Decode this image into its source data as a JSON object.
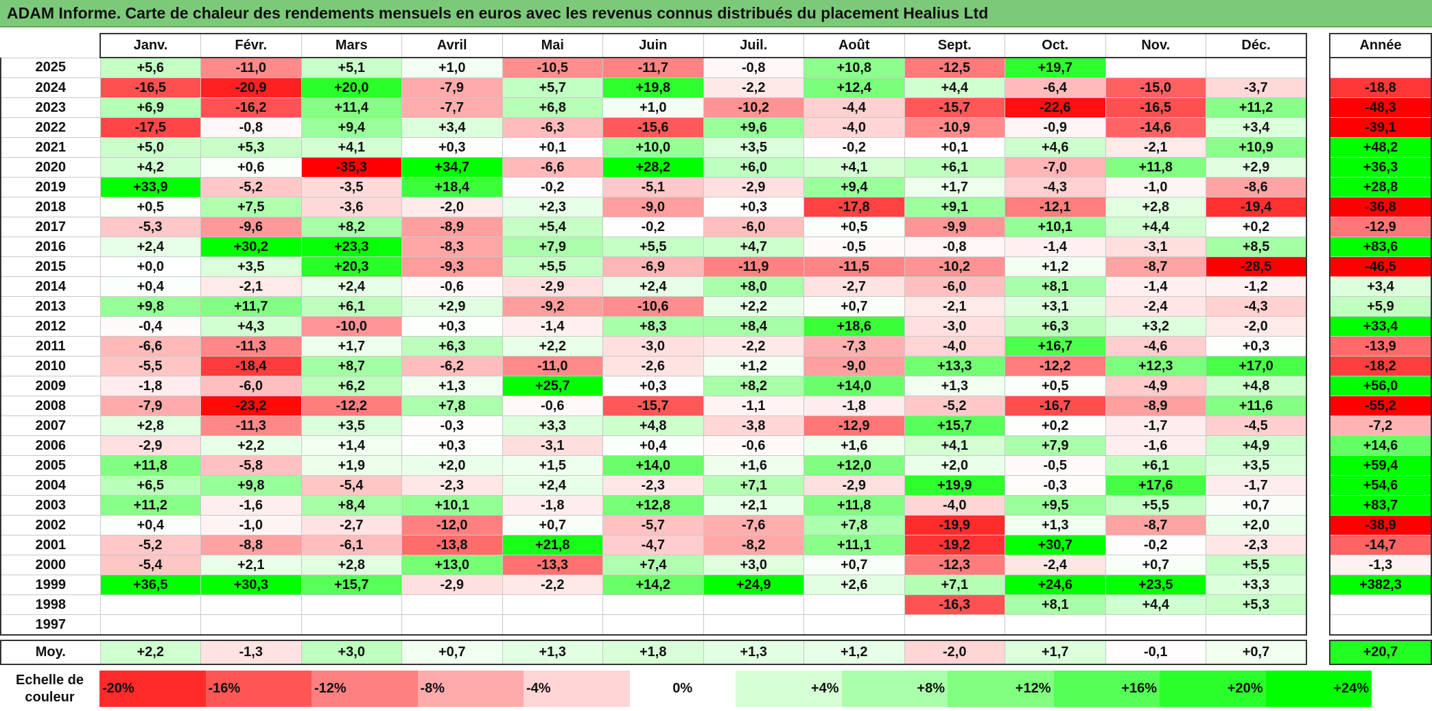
{
  "title": "ADAM Informe. Carte de chaleur des rendements mensuels en euros avec les revenus connus distribués du placement Healius Ltd",
  "chart_data": {
    "type": "heatmap",
    "title": "ADAM Informe. Carte de chaleur des rendements mensuels en euros avec les revenus connus distribués du placement Healius Ltd",
    "months": [
      "Janv.",
      "Févr.",
      "Mars",
      "Avril",
      "Mai",
      "Juin",
      "Juil.",
      "Août",
      "Sept.",
      "Oct.",
      "Nov.",
      "Déc."
    ],
    "year_header": "Année",
    "avg_label": "Moy.",
    "rows": [
      {
        "year": "2025",
        "values": [
          "+5,6",
          "-11,0",
          "+5,1",
          "+1,0",
          "-10,5",
          "-11,7",
          "-0,8",
          "+10,8",
          "-12,5",
          "+19,7",
          "",
          ""
        ],
        "annual": ""
      },
      {
        "year": "2024",
        "values": [
          "-16,5",
          "-20,9",
          "+20,0",
          "-7,9",
          "+5,7",
          "+19,8",
          "-2,2",
          "+12,4",
          "+4,4",
          "-6,4",
          "-15,0",
          "-3,7"
        ],
        "annual": "-18,8"
      },
      {
        "year": "2023",
        "values": [
          "+6,9",
          "-16,2",
          "+11,4",
          "-7,7",
          "+6,8",
          "+1,0",
          "-10,2",
          "-4,4",
          "-15,7",
          "-22,6",
          "-16,5",
          "+11,2"
        ],
        "annual": "-48,3"
      },
      {
        "year": "2022",
        "values": [
          "-17,5",
          "-0,8",
          "+9,4",
          "+3,4",
          "-6,3",
          "-15,6",
          "+9,6",
          "-4,0",
          "-10,9",
          "-0,9",
          "-14,6",
          "+3,4"
        ],
        "annual": "-39,1"
      },
      {
        "year": "2021",
        "values": [
          "+5,0",
          "+5,3",
          "+4,1",
          "+0,3",
          "+0,1",
          "+10,0",
          "+3,5",
          "-0,2",
          "+0,1",
          "+4,6",
          "-2,1",
          "+10,9"
        ],
        "annual": "+48,2"
      },
      {
        "year": "2020",
        "values": [
          "+4,2",
          "+0,6",
          "-35,3",
          "+34,7",
          "-6,6",
          "+28,2",
          "+6,0",
          "+4,1",
          "+6,1",
          "-7,0",
          "+11,8",
          "+2,9"
        ],
        "annual": "+36,3"
      },
      {
        "year": "2019",
        "values": [
          "+33,9",
          "-5,2",
          "-3,5",
          "+18,4",
          "-0,2",
          "-5,1",
          "-2,9",
          "+9,4",
          "+1,7",
          "-4,3",
          "-1,0",
          "-8,6"
        ],
        "annual": "+28,8"
      },
      {
        "year": "2018",
        "values": [
          "+0,5",
          "+7,5",
          "-3,6",
          "-2,0",
          "+2,3",
          "-9,0",
          "+0,3",
          "-17,8",
          "+9,1",
          "-12,1",
          "+2,8",
          "-19,4"
        ],
        "annual": "-36,8"
      },
      {
        "year": "2017",
        "values": [
          "-5,3",
          "-9,6",
          "+8,2",
          "-8,9",
          "+5,4",
          "-0,2",
          "-6,0",
          "+0,5",
          "-9,9",
          "+10,1",
          "+4,4",
          "+0,2"
        ],
        "annual": "-12,9"
      },
      {
        "year": "2016",
        "values": [
          "+2,4",
          "+30,2",
          "+23,3",
          "-8,3",
          "+7,9",
          "+5,5",
          "+4,7",
          "-0,5",
          "-0,8",
          "-1,4",
          "-3,1",
          "+8,5"
        ],
        "annual": "+83,6"
      },
      {
        "year": "2015",
        "values": [
          "+0,0",
          "+3,5",
          "+20,3",
          "-9,3",
          "+5,5",
          "-6,9",
          "-11,9",
          "-11,5",
          "-10,2",
          "+1,2",
          "-8,7",
          "-28,5"
        ],
        "annual": "-46,5"
      },
      {
        "year": "2014",
        "values": [
          "+0,4",
          "-2,1",
          "+2,4",
          "-0,6",
          "-2,9",
          "+2,4",
          "+8,0",
          "-2,7",
          "-6,0",
          "+8,1",
          "-1,4",
          "-1,2"
        ],
        "annual": "+3,4"
      },
      {
        "year": "2013",
        "values": [
          "+9,8",
          "+11,7",
          "+6,1",
          "+2,9",
          "-9,2",
          "-10,6",
          "+2,2",
          "+0,7",
          "-2,1",
          "+3,1",
          "-2,4",
          "-4,3"
        ],
        "annual": "+5,9"
      },
      {
        "year": "2012",
        "values": [
          "-0,4",
          "+4,3",
          "-10,0",
          "+0,3",
          "-1,4",
          "+8,3",
          "+8,4",
          "+18,6",
          "-3,0",
          "+6,3",
          "+3,2",
          "-2,0"
        ],
        "annual": "+33,4"
      },
      {
        "year": "2011",
        "values": [
          "-6,6",
          "-11,3",
          "+1,7",
          "+6,3",
          "+2,2",
          "-3,0",
          "-2,2",
          "-7,3",
          "-4,0",
          "+16,7",
          "-4,6",
          "+0,3"
        ],
        "annual": "-13,9"
      },
      {
        "year": "2010",
        "values": [
          "-5,5",
          "-18,4",
          "+8,7",
          "-6,2",
          "-11,0",
          "-2,6",
          "+1,2",
          "-9,0",
          "+13,3",
          "-12,2",
          "+12,3",
          "+17,0"
        ],
        "annual": "-18,2"
      },
      {
        "year": "2009",
        "values": [
          "-1,8",
          "-6,0",
          "+6,2",
          "+1,3",
          "+25,7",
          "+0,3",
          "+8,2",
          "+14,0",
          "+1,3",
          "+0,5",
          "-4,9",
          "+4,8"
        ],
        "annual": "+56,0"
      },
      {
        "year": "2008",
        "values": [
          "-7,9",
          "-23,2",
          "-12,2",
          "+7,8",
          "-0,6",
          "-15,7",
          "-1,1",
          "-1,8",
          "-5,2",
          "-16,7",
          "-8,9",
          "+11,6"
        ],
        "annual": "-55,2"
      },
      {
        "year": "2007",
        "values": [
          "+2,8",
          "-11,3",
          "+3,5",
          "-0,3",
          "+3,3",
          "+4,8",
          "-3,8",
          "-12,9",
          "+15,7",
          "+0,2",
          "-1,7",
          "-4,5"
        ],
        "annual": "-7,2"
      },
      {
        "year": "2006",
        "values": [
          "-2,9",
          "+2,2",
          "+1,4",
          "+0,3",
          "-3,1",
          "+0,4",
          "-0,6",
          "+1,6",
          "+4,1",
          "+7,9",
          "-1,6",
          "+4,9"
        ],
        "annual": "+14,6"
      },
      {
        "year": "2005",
        "values": [
          "+11,8",
          "-5,8",
          "+1,9",
          "+2,0",
          "+1,5",
          "+14,0",
          "+1,6",
          "+12,0",
          "+2,0",
          "-0,5",
          "+6,1",
          "+3,5"
        ],
        "annual": "+59,4"
      },
      {
        "year": "2004",
        "values": [
          "+6,5",
          "+9,8",
          "-5,4",
          "-2,3",
          "+2,4",
          "-2,3",
          "+7,1",
          "-2,9",
          "+19,9",
          "-0,3",
          "+17,6",
          "-1,7"
        ],
        "annual": "+54,6"
      },
      {
        "year": "2003",
        "values": [
          "+11,2",
          "-1,6",
          "+8,4",
          "+10,1",
          "-1,8",
          "+12,8",
          "+2,1",
          "+11,8",
          "-4,0",
          "+9,5",
          "+5,5",
          "+0,7"
        ],
        "annual": "+83,7"
      },
      {
        "year": "2002",
        "values": [
          "+0,4",
          "-1,0",
          "-2,7",
          "-12,0",
          "+0,7",
          "-5,7",
          "-7,6",
          "+7,8",
          "-19,9",
          "+1,3",
          "-8,7",
          "+2,0"
        ],
        "annual": "-38,9"
      },
      {
        "year": "2001",
        "values": [
          "-5,2",
          "-8,8",
          "-6,1",
          "-13,8",
          "+21,8",
          "-4,7",
          "-8,2",
          "+11,1",
          "-19,2",
          "+30,7",
          "-0,2",
          "-2,3"
        ],
        "annual": "-14,7"
      },
      {
        "year": "2000",
        "values": [
          "-5,4",
          "+2,1",
          "+2,8",
          "+13,0",
          "-13,3",
          "+7,4",
          "+3,0",
          "+0,7",
          "-12,3",
          "-2,4",
          "+0,7",
          "+5,5"
        ],
        "annual": "-1,3"
      },
      {
        "year": "1999",
        "values": [
          "+36,5",
          "+30,3",
          "+15,7",
          "-2,9",
          "-2,2",
          "+14,2",
          "+24,9",
          "+2,6",
          "+7,1",
          "+24,6",
          "+23,5",
          "+3,3"
        ],
        "annual": "+382,3"
      },
      {
        "year": "1998",
        "values": [
          "",
          "",
          "",
          "",
          "",
          "",
          "",
          "",
          "-16,3",
          "+8,1",
          "+4,4",
          "+5,3"
        ],
        "annual": ""
      },
      {
        "year": "1997",
        "values": [
          "",
          "",
          "",
          "",
          "",
          "",
          "",
          "",
          "",
          "",
          "",
          ""
        ],
        "annual": ""
      }
    ],
    "averages": {
      "values": [
        "+2,2",
        "-1,3",
        "+3,0",
        "+0,7",
        "+1,3",
        "+1,8",
        "+1,3",
        "+1,2",
        "-2,0",
        "+1,7",
        "-0,1",
        "+0,7"
      ],
      "annual": "+20,7"
    },
    "scale": {
      "label": "Echelle de couleur",
      "steps": [
        "-20%",
        "-16%",
        "-12%",
        "-8%",
        "-4%",
        "0%",
        "+4%",
        "+8%",
        "+12%",
        "+16%",
        "+20%",
        "+24%"
      ],
      "step_values": [
        -20,
        -16,
        -12,
        -8,
        -4,
        0,
        4,
        8,
        12,
        16,
        20,
        24
      ]
    },
    "colors": {
      "negative": "#ff0000",
      "neutral": "#ffffff",
      "positive": "#00ff00"
    }
  }
}
